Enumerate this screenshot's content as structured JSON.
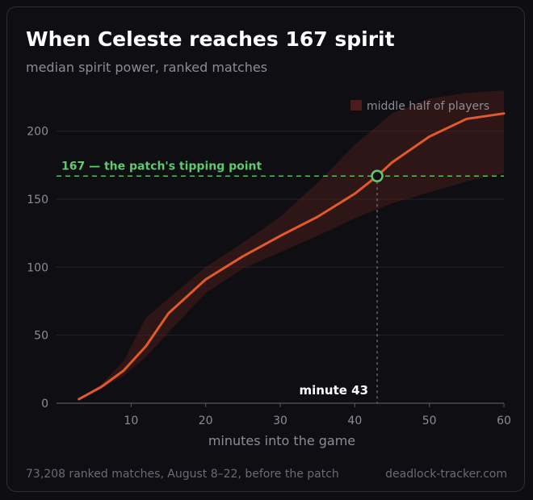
{
  "header": {
    "title": "When Celeste reaches 167 spirit",
    "subtitle": "median spirit power, ranked matches"
  },
  "footer": {
    "source_note": "73,208 ranked matches, August 8–22, before the patch",
    "site": "deadlock-tracker.com"
  },
  "colors": {
    "median_line": "#e05a2b",
    "band_fill": "#4a1d1a",
    "threshold": "#5fc96e",
    "grid": "#24252c",
    "axis_text": "#8b8d96"
  },
  "chart_data": {
    "type": "line",
    "title": "When Celeste reaches 167 spirit",
    "subtitle": "median spirit power, ranked matches",
    "xlabel": "minutes into the game",
    "ylabel": "",
    "xlim": [
      0,
      60
    ],
    "ylim": [
      0,
      230
    ],
    "xticks": [
      10,
      20,
      30,
      40,
      50,
      60
    ],
    "yticks": [
      0,
      50,
      100,
      150,
      200
    ],
    "grid": "horizontal",
    "legend": {
      "position": "top-right",
      "entries": [
        "middle half of players"
      ]
    },
    "series": [
      {
        "role": "median",
        "x": [
          3,
          6,
          9,
          12,
          15,
          20,
          25,
          30,
          35,
          40,
          43,
          45,
          50,
          55,
          60
        ],
        "y": [
          3,
          12,
          24,
          42,
          66,
          91,
          108,
          123,
          137,
          154,
          167,
          177,
          196,
          209,
          213
        ]
      },
      {
        "role": "band",
        "name": "middle half of players",
        "x": [
          3,
          6,
          9,
          12,
          15,
          20,
          25,
          30,
          35,
          40,
          45,
          50,
          55,
          60
        ],
        "lower": [
          3,
          11,
          20,
          34,
          52,
          81,
          99,
          111,
          123,
          136,
          147,
          155,
          163,
          169
        ],
        "upper": [
          3,
          14,
          31,
          63,
          77,
          100,
          118,
          137,
          162,
          190,
          213,
          224,
          228,
          230
        ]
      }
    ],
    "threshold": {
      "value": 167,
      "label": "167 — the patch's tipping point"
    },
    "crossing": {
      "x": 43,
      "y": 167,
      "label": "minute 43"
    }
  }
}
